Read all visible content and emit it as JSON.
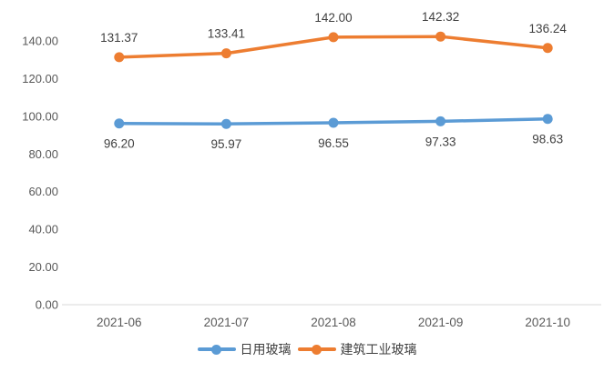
{
  "chart_data": {
    "type": "line",
    "title": "",
    "xlabel": "",
    "ylabel": "",
    "categories": [
      "2021-06",
      "2021-07",
      "2021-08",
      "2021-09",
      "2021-10"
    ],
    "series": [
      {
        "name": "日用玻璃",
        "color": "#5B9BD5",
        "values": [
          96.2,
          95.97,
          96.55,
          97.33,
          98.63
        ],
        "data_labels": [
          "96.20",
          "95.97",
          "96.55",
          "97.33",
          "98.63"
        ],
        "label_position": "below"
      },
      {
        "name": "建筑工业玻璃",
        "color": "#ED7D31",
        "values": [
          131.37,
          133.41,
          142.0,
          142.32,
          136.24
        ],
        "data_labels": [
          "131.37",
          "133.41",
          "142.00",
          "142.32",
          "136.24"
        ],
        "label_position": "above"
      }
    ],
    "yticks": [
      0,
      20,
      40,
      60,
      80,
      100,
      120,
      140
    ],
    "ytick_labels": [
      "0.00",
      "20.00",
      "40.00",
      "60.00",
      "80.00",
      "100.00",
      "120.00",
      "140.00"
    ],
    "ylim": [
      0,
      160
    ],
    "grid": false,
    "legend_position": "bottom",
    "colors": {
      "axis_line": "#D9D9D9",
      "tick_text": "#595959",
      "data_label_text": "#404040",
      "background": "#FFFFFF"
    }
  }
}
